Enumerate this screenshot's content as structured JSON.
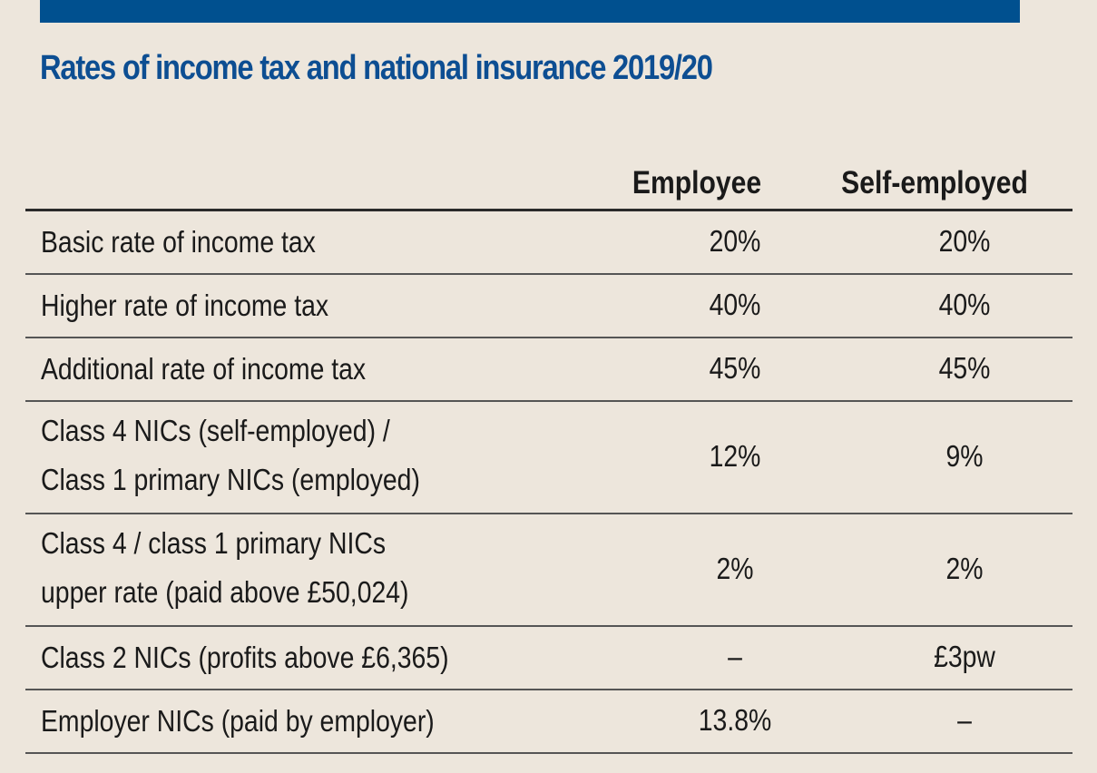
{
  "title": "Rates of income tax and national insurance 2019/20",
  "columns": {
    "employee": "Employee",
    "self_employed": "Self-employed"
  },
  "rows": [
    {
      "label": [
        "Basic rate of income tax"
      ],
      "employee": "20%",
      "self_employed": "20%"
    },
    {
      "label": [
        "Higher rate of income tax"
      ],
      "employee": "40%",
      "self_employed": "40%"
    },
    {
      "label": [
        "Additional rate of income tax"
      ],
      "employee": "45%",
      "self_employed": "45%"
    },
    {
      "label": [
        "Class 4 NICs (self-employed) /",
        "Class 1 primary NICs (employed)"
      ],
      "employee": "12%",
      "self_employed": "9%"
    },
    {
      "label": [
        "Class 4 / class 1 primary NICs",
        "upper rate (paid above £50,024)"
      ],
      "employee": "2%",
      "self_employed": "2%"
    },
    {
      "label": [
        "Class 2 NICs (profits above £6,365)"
      ],
      "employee": "–",
      "self_employed": "£3pw"
    },
    {
      "label": [
        "Employer NICs (paid by employer)"
      ],
      "employee": "13.8%",
      "self_employed": "–"
    }
  ],
  "colors": {
    "brand_blue": "#00508f",
    "title_blue": "#0d4e92",
    "background": "#ede6dc"
  }
}
